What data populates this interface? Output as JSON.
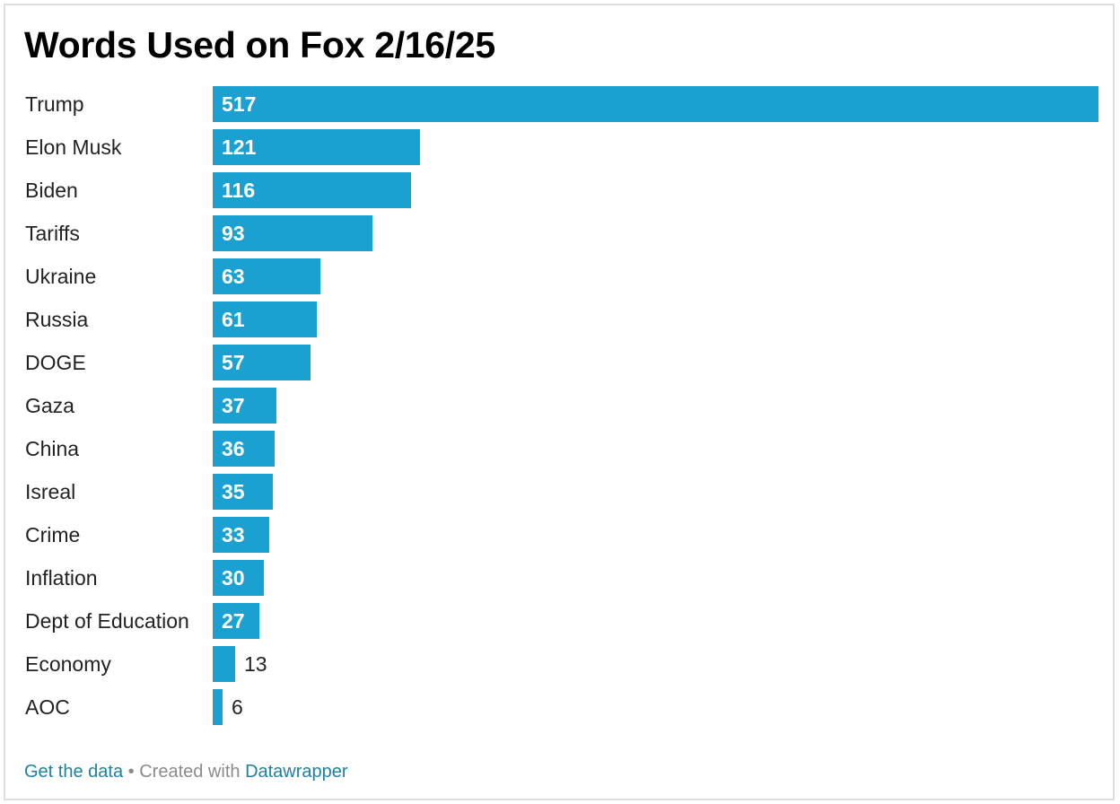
{
  "title": "Words Used on Fox 2/16/25",
  "footer": {
    "get_data_label": "Get the data",
    "separator": "•",
    "created_with": "Created with",
    "tool_label": "Datawrapper"
  },
  "colors": {
    "bar": "#1ba1d1",
    "footer_link": "#1d81a2",
    "footer_text": "#8b8b8b"
  },
  "chart_data": {
    "type": "bar",
    "orientation": "horizontal",
    "title": "Words Used on Fox 2/16/25",
    "xlabel": "",
    "ylabel": "",
    "categories": [
      "Trump",
      "Elon Musk",
      "Biden",
      "Tariffs",
      "Ukraine",
      "Russia",
      "DOGE",
      "Gaza",
      "China",
      "Isreal",
      "Crime",
      "Inflation",
      "Dept of Education",
      "Economy",
      "AOC"
    ],
    "values": [
      517,
      121,
      116,
      93,
      63,
      61,
      57,
      37,
      36,
      35,
      33,
      30,
      27,
      13,
      6
    ],
    "xlim": [
      0,
      517
    ],
    "grid": false,
    "legend": "none",
    "value_labels": true
  }
}
